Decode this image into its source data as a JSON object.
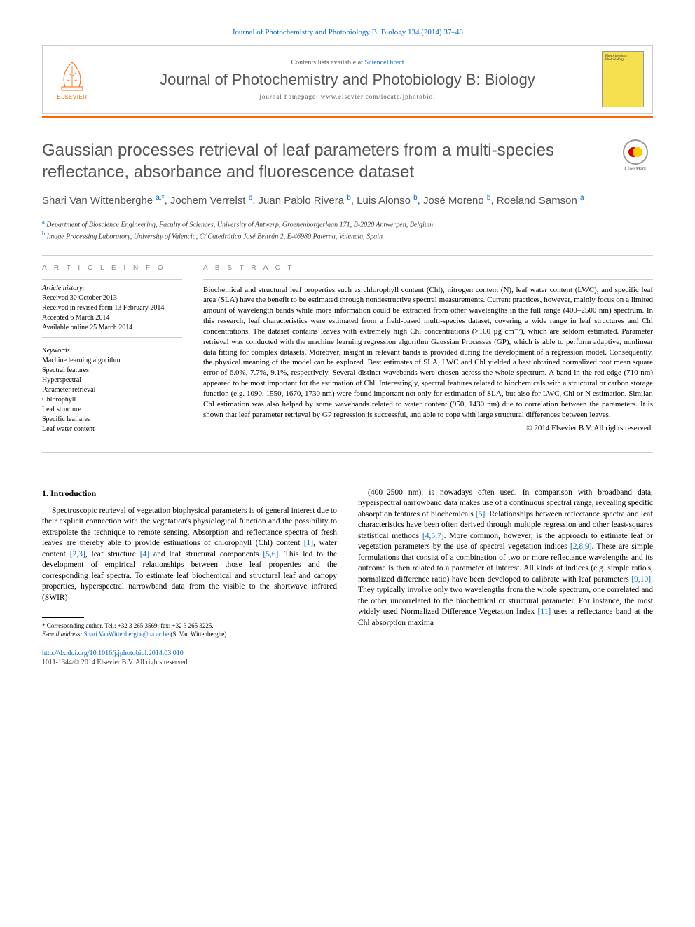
{
  "header": {
    "citation": "Journal of Photochemistry and Photobiology B: Biology 134 (2014) 37–48",
    "contents_prefix": "Contents lists available at ",
    "contents_link": "ScienceDirect",
    "journal_name": "Journal of Photochemistry and Photobiology B: Biology",
    "homepage_prefix": "journal homepage: ",
    "homepage_url": "www.elsevier.com/locate/jphotobiol",
    "elsevier_label": "ELSEVIER",
    "cover_text": "Photochemistry Photobiology"
  },
  "article": {
    "title": "Gaussian processes retrieval of leaf parameters from a multi-species reflectance, absorbance and fluorescence dataset",
    "crossmark": "CrossMark"
  },
  "authors": [
    {
      "name": "Shari Van Wittenberghe",
      "sup": "a,*"
    },
    {
      "name": "Jochem Verrelst",
      "sup": "b"
    },
    {
      "name": "Juan Pablo Rivera",
      "sup": "b"
    },
    {
      "name": "Luis Alonso",
      "sup": "b"
    },
    {
      "name": "José Moreno",
      "sup": "b"
    },
    {
      "name": "Roeland Samson",
      "sup": "a"
    }
  ],
  "affiliations": [
    {
      "marker": "a",
      "text": "Department of Bioscience Engineering, Faculty of Sciences, University of Antwerp, Groenenborgerlaan 171, B-2020 Antwerpen, Belgium"
    },
    {
      "marker": "b",
      "text": "Image Processing Laboratory, University of Valencia, C/ Catedrático José Beltrán 2, E-46980 Paterna, Valencia, Spain"
    }
  ],
  "info": {
    "heading": "A R T I C L E   I N F O",
    "history_label": "Article history:",
    "history": [
      "Received 30 October 2013",
      "Received in revised form 13 February 2014",
      "Accepted 6 March 2014",
      "Available online 25 March 2014"
    ],
    "keywords_label": "Keywords:",
    "keywords": [
      "Machine learning algorithm",
      "Spectral features",
      "Hyperspectral",
      "Parameter retrieval",
      "Chlorophyll",
      "Leaf structure",
      "Specific leaf area",
      "Leaf water content"
    ]
  },
  "abstract": {
    "heading": "A B S T R A C T",
    "text": "Biochemical and structural leaf properties such as chlorophyll content (Chl), nitrogen content (N), leaf water content (LWC), and specific leaf area (SLA) have the benefit to be estimated through nondestructive spectral measurements. Current practices, however, mainly focus on a limited amount of wavelength bands while more information could be extracted from other wavelengths in the full range (400–2500 nm) spectrum. In this research, leaf characteristics were estimated from a field-based multi-species dataset, covering a wide range in leaf structures and Chl concentrations. The dataset contains leaves with extremely high Chl concentrations (>100 µg cm⁻²), which are seldom estimated. Parameter retrieval was conducted with the machine learning regression algorithm Gaussian Processes (GP), which is able to perform adaptive, nonlinear data fitting for complex datasets. Moreover, insight in relevant bands is provided during the development of a regression model. Consequently, the physical meaning of the model can be explored. Best estimates of SLA, LWC and Chl yielded a best obtained normalized root mean square error of 6.0%, 7.7%, 9.1%, respectively. Several distinct wavebands were chosen across the whole spectrum. A band in the red edge (710 nm) appeared to be most important for the estimation of Chl. Interestingly, spectral features related to biochemicals with a structural or carbon storage function (e.g. 1090, 1550, 1670, 1730 nm) were found important not only for estimation of SLA, but also for LWC, Chl or N estimation. Similar, Chl estimation was also helped by some wavebands related to water content (950, 1430 nm) due to correlation between the parameters. It is shown that leaf parameter retrieval by GP regression is successful, and able to cope with large structural differences between leaves.",
    "copyright": "© 2014 Elsevier B.V. All rights reserved."
  },
  "body": {
    "section_heading": "1. Introduction",
    "col1": "Spectroscopic retrieval of vegetation biophysical parameters is of general interest due to their explicit connection with the vegetation's physiological function and the possibility to extrapolate the technique to remote sensing. Absorption and reflectance spectra of fresh leaves are thereby able to provide estimations of chlorophyll (Chl) content [1], water content [2,3], leaf structure [4] and leaf structural components [5,6]. This led to the development of empirical relationships between those leaf properties and the corresponding leaf spectra. To estimate leaf biochemical and structural leaf and canopy properties, hyperspectral narrowband data from the visible to the shortwave infrared (SWIR)",
    "col1_cites": {
      "c1": "[1]",
      "c2": "[2,3]",
      "c3": "[4]",
      "c4": "[5,6]"
    },
    "col2": "(400–2500 nm), is nowadays often used. In comparison with broadband data, hyperspectral narrowband data makes use of a continuous spectral range, revealing specific absorption features of biochemicals [5]. Relationships between reflectance spectra and leaf characteristics have been often derived through multiple regression and other least-squares statistical methods [4,5,7]. More common, however, is the approach to estimate leaf or vegetation parameters by the use of spectral vegetation indices [2,8,9]. These are simple formulations that consist of a combination of two or more reflectance wavelengths and its outcome is then related to a parameter of interest. All kinds of indices (e.g. simple ratio's, normalized difference ratio) have been developed to calibrate with leaf parameters [9,10]. They typically involve only two wavelengths from the whole spectrum, one correlated and the other uncorrelated to the biochemical or structural parameter. For instance, the most widely used Normalized Difference Vegetation Index [11] uses a reflectance band at the Chl absorption maxima",
    "col2_cites": {
      "c1": "[5]",
      "c2": "[4,5,7]",
      "c3": "[2,8,9]",
      "c4": "[9,10]",
      "c5": "[11]"
    }
  },
  "footnote": {
    "corr_label": "* Corresponding author. Tel.: +32 3 265 3569; fax: +32 3 265 3225.",
    "email_label": "E-mail address: ",
    "email": "Shari.VanWittenberghe@ua.ac.be",
    "email_suffix": " (S. Van Wittenberghe)."
  },
  "footer": {
    "doi": "http://dx.doi.org/10.1016/j.jphotobiol.2014.03.010",
    "issn_copyright": "1011-1344/© 2014 Elsevier B.V. All rights reserved."
  },
  "colors": {
    "link": "#0066cc",
    "accent": "#ff6600",
    "heading": "#555555",
    "cover_bg": "#f5e050"
  }
}
